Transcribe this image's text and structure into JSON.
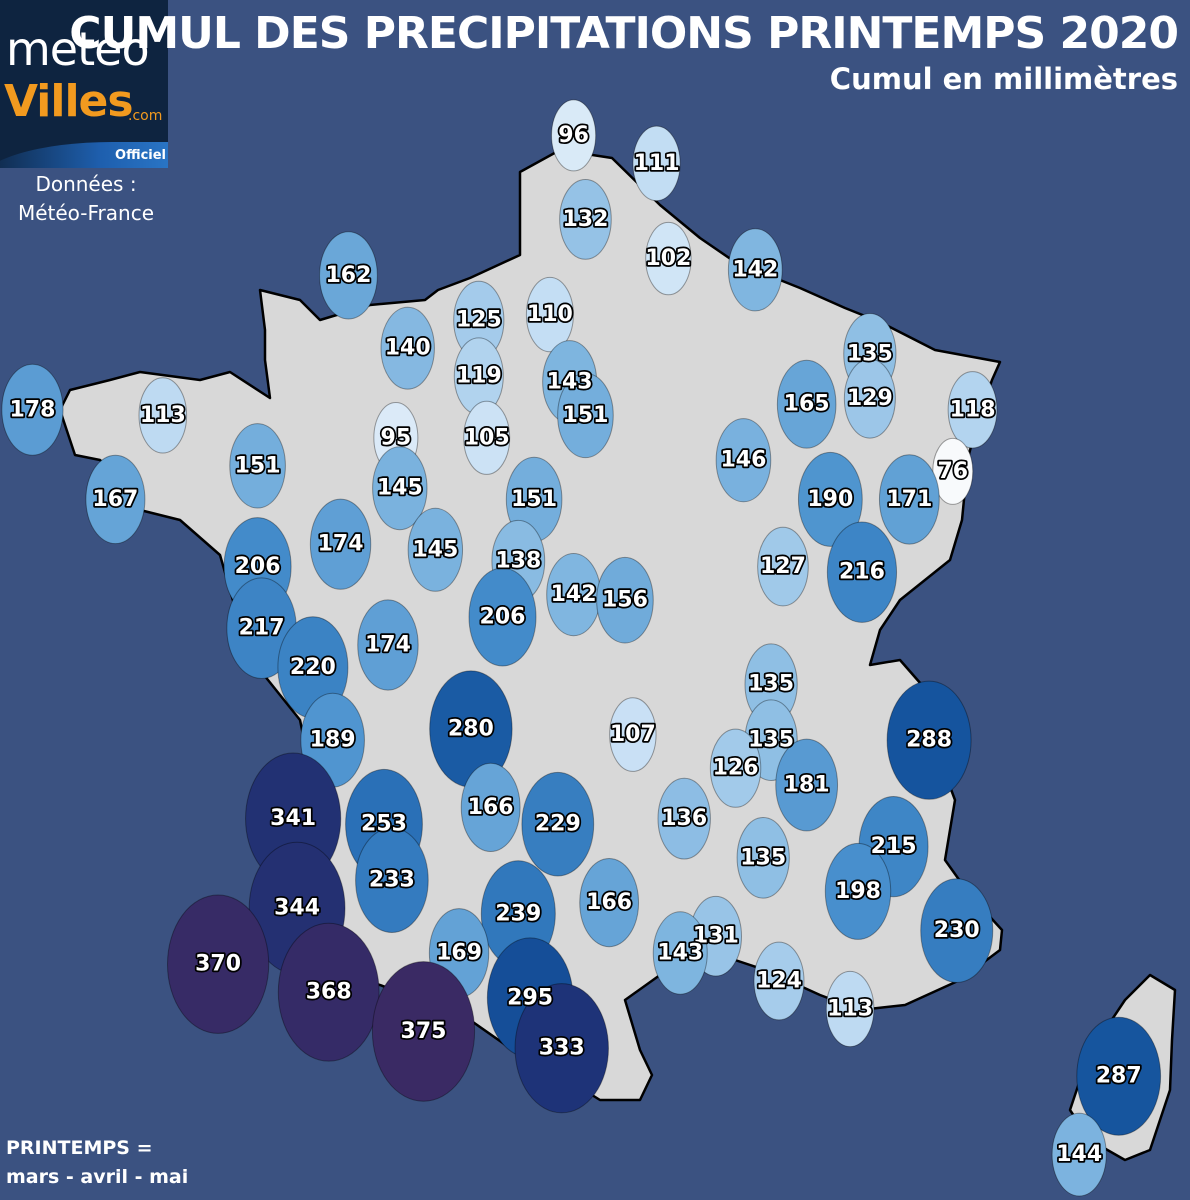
{
  "title": "CUMUL DES PRECIPITATIONS PRINTEMPS 2020",
  "subtitle": "Cumul en millimètres",
  "logo": {
    "line1": "meteo",
    "line2": "Villes",
    "line3": ".com",
    "badge": "Officiel"
  },
  "source": {
    "line1": "Données :",
    "line2": "Météo-France"
  },
  "footer": {
    "line1": "PRINTEMPS =",
    "line2": "mars - avril - mai"
  },
  "colors": {
    "background": "#3b5281",
    "land": "#d8d8d8",
    "border": "#000000",
    "logo_accent": "#f29a1f"
  },
  "unit": "mm",
  "stations": [
    {
      "value": 96,
      "lon": 2.4,
      "lat": 51.05
    },
    {
      "value": 111,
      "lon": 3.45,
      "lat": 50.8
    },
    {
      "value": 132,
      "lon": 2.55,
      "lat": 50.3
    },
    {
      "value": 102,
      "lon": 3.6,
      "lat": 49.95
    },
    {
      "value": 142,
      "lon": 4.7,
      "lat": 49.85
    },
    {
      "value": 162,
      "lon": -0.45,
      "lat": 49.8
    },
    {
      "value": 125,
      "lon": 1.2,
      "lat": 49.4
    },
    {
      "value": 110,
      "lon": 2.1,
      "lat": 49.45
    },
    {
      "value": 140,
      "lon": 0.3,
      "lat": 49.15
    },
    {
      "value": 119,
      "lon": 1.2,
      "lat": 48.9
    },
    {
      "value": 143,
      "lon": 2.35,
      "lat": 48.85
    },
    {
      "value": 151,
      "lon": 2.55,
      "lat": 48.55
    },
    {
      "value": 135,
      "lon": 6.15,
      "lat": 49.1
    },
    {
      "value": 165,
      "lon": 5.35,
      "lat": 48.65
    },
    {
      "value": 129,
      "lon": 6.15,
      "lat": 48.7
    },
    {
      "value": 118,
      "lon": 7.45,
      "lat": 48.6
    },
    {
      "value": 178,
      "lon": -4.45,
      "lat": 48.6
    },
    {
      "value": 113,
      "lon": -2.8,
      "lat": 48.55
    },
    {
      "value": 95,
      "lon": 0.15,
      "lat": 48.35
    },
    {
      "value": 105,
      "lon": 1.3,
      "lat": 48.35
    },
    {
      "value": 146,
      "lon": 4.55,
      "lat": 48.15
    },
    {
      "value": 76,
      "lon": 7.2,
      "lat": 48.05
    },
    {
      "value": 151,
      "lon": -1.6,
      "lat": 48.1
    },
    {
      "value": 167,
      "lon": -3.4,
      "lat": 47.8
    },
    {
      "value": 145,
      "lon": 0.2,
      "lat": 47.9
    },
    {
      "value": 151,
      "lon": 1.9,
      "lat": 47.8
    },
    {
      "value": 190,
      "lon": 5.65,
      "lat": 47.8
    },
    {
      "value": 171,
      "lon": 6.65,
      "lat": 47.8
    },
    {
      "value": 174,
      "lon": -0.55,
      "lat": 47.4
    },
    {
      "value": 206,
      "lon": -1.6,
      "lat": 47.2
    },
    {
      "value": 145,
      "lon": 0.65,
      "lat": 47.35
    },
    {
      "value": 138,
      "lon": 1.7,
      "lat": 47.25
    },
    {
      "value": 127,
      "lon": 5.05,
      "lat": 47.2
    },
    {
      "value": 216,
      "lon": 6.05,
      "lat": 47.15
    },
    {
      "value": 142,
      "lon": 2.4,
      "lat": 46.95
    },
    {
      "value": 156,
      "lon": 3.05,
      "lat": 46.9
    },
    {
      "value": 206,
      "lon": 1.5,
      "lat": 46.75
    },
    {
      "value": 217,
      "lon": -1.55,
      "lat": 46.65
    },
    {
      "value": 174,
      "lon": 0.05,
      "lat": 46.5
    },
    {
      "value": 220,
      "lon": -0.9,
      "lat": 46.3
    },
    {
      "value": 135,
      "lon": 4.9,
      "lat": 46.15
    },
    {
      "value": 280,
      "lon": 1.1,
      "lat": 45.75
    },
    {
      "value": 189,
      "lon": -0.65,
      "lat": 45.65
    },
    {
      "value": 107,
      "lon": 3.15,
      "lat": 45.7
    },
    {
      "value": 135,
      "lon": 4.9,
      "lat": 45.65
    },
    {
      "value": 288,
      "lon": 6.9,
      "lat": 45.65
    },
    {
      "value": 126,
      "lon": 4.45,
      "lat": 45.4
    },
    {
      "value": 181,
      "lon": 5.35,
      "lat": 45.25
    },
    {
      "value": 341,
      "lon": -1.15,
      "lat": 44.95
    },
    {
      "value": 253,
      "lon": 0.0,
      "lat": 44.9
    },
    {
      "value": 166,
      "lon": 1.35,
      "lat": 45.05
    },
    {
      "value": 229,
      "lon": 2.2,
      "lat": 44.9
    },
    {
      "value": 136,
      "lon": 3.8,
      "lat": 44.95
    },
    {
      "value": 215,
      "lon": 6.45,
      "lat": 44.7
    },
    {
      "value": 135,
      "lon": 4.8,
      "lat": 44.6
    },
    {
      "value": 233,
      "lon": 0.1,
      "lat": 44.4
    },
    {
      "value": 198,
      "lon": 6.0,
      "lat": 44.3
    },
    {
      "value": 344,
      "lon": -1.1,
      "lat": 44.15
    },
    {
      "value": 239,
      "lon": 1.7,
      "lat": 44.1
    },
    {
      "value": 166,
      "lon": 2.85,
      "lat": 44.2
    },
    {
      "value": 230,
      "lon": 7.25,
      "lat": 43.95
    },
    {
      "value": 370,
      "lon": -2.1,
      "lat": 43.65
    },
    {
      "value": 169,
      "lon": 0.95,
      "lat": 43.75
    },
    {
      "value": 131,
      "lon": 4.2,
      "lat": 43.9
    },
    {
      "value": 143,
      "lon": 3.75,
      "lat": 43.75
    },
    {
      "value": 368,
      "lon": -0.7,
      "lat": 43.4
    },
    {
      "value": 124,
      "lon": 5.0,
      "lat": 43.5
    },
    {
      "value": 295,
      "lon": 1.85,
      "lat": 43.35
    },
    {
      "value": 113,
      "lon": 5.9,
      "lat": 43.25
    },
    {
      "value": 375,
      "lon": 0.5,
      "lat": 43.05
    },
    {
      "value": 333,
      "lon": 2.25,
      "lat": 42.9
    },
    {
      "value": 287,
      "lon": 9.3,
      "lat": 42.65
    },
    {
      "value": 144,
      "lon": 8.8,
      "lat": 41.95
    }
  ]
}
